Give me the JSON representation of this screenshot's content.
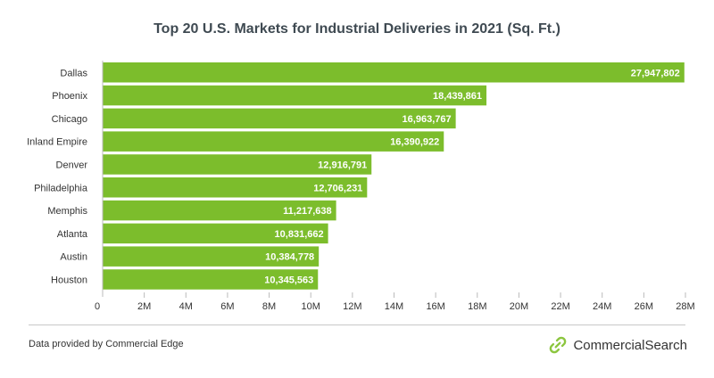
{
  "chart_data": {
    "type": "bar",
    "orientation": "horizontal",
    "title": "Top 20 U.S. Markets for Industrial Deliveries in 2021 (Sq. Ft.)",
    "categories": [
      "Dallas",
      "Phoenix",
      "Chicago",
      "Inland Empire",
      "Denver",
      "Philadelphia",
      "Memphis",
      "Atlanta",
      "Austin",
      "Houston"
    ],
    "values": [
      27947802,
      18439861,
      16963767,
      16390922,
      12916791,
      12706231,
      11217638,
      10831662,
      10384778,
      10345563
    ],
    "value_labels": [
      "27,947,802",
      "18,439,861",
      "16,963,767",
      "16,390,922",
      "12,916,791",
      "12,706,231",
      "11,217,638",
      "10,831,662",
      "10,384,778",
      "10,345,563"
    ],
    "xlim": [
      0,
      28000000
    ],
    "x_ticks": [
      0,
      2000000,
      4000000,
      6000000,
      8000000,
      10000000,
      12000000,
      14000000,
      16000000,
      18000000,
      20000000,
      22000000,
      24000000,
      26000000,
      28000000
    ],
    "x_tick_labels": [
      "0",
      "2M",
      "4M",
      "6M",
      "8M",
      "10M",
      "12M",
      "14M",
      "16M",
      "18M",
      "20M",
      "22M",
      "24M",
      "26M",
      "28M"
    ],
    "grid": false,
    "bar_color": "#7cbd2c"
  },
  "footer": {
    "note": "Data provided by Commercial Edge",
    "brand": "CommercialSearch"
  },
  "colors": {
    "bar": "#7cbd2c",
    "brand_accent": "#8cc63f",
    "text": "#3f4a52"
  }
}
